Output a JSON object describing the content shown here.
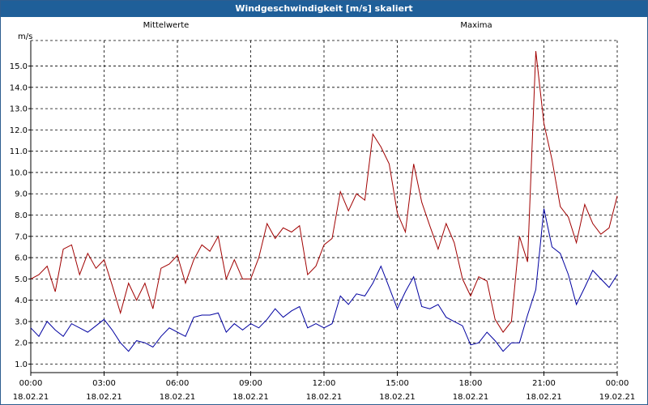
{
  "window": {
    "title": "Windgeschwindigkeit [m/s] skaliert"
  },
  "colors": {
    "mean": "#0000a0",
    "max": "#a00000",
    "titlebar": "#1f5f99"
  },
  "chart_data": {
    "type": "line",
    "title": "Windgeschwindigkeit [m/s] skaliert",
    "ylabel": "m/s",
    "xlabel": "",
    "ylim": [
      0.6,
      16.2
    ],
    "xlim": [
      0,
      24
    ],
    "grid": true,
    "yticks": [
      "1.0",
      "2.0",
      "3.0",
      "4.0",
      "5.0",
      "6.0",
      "7.0",
      "8.0",
      "9.0",
      "10.0",
      "11.0",
      "12.0",
      "13.0",
      "14.0",
      "15.0"
    ],
    "xticks": [
      {
        "time": "00:00",
        "date": "18.02.21"
      },
      {
        "time": "03:00",
        "date": "18.02.21"
      },
      {
        "time": "06:00",
        "date": "18.02.21"
      },
      {
        "time": "09:00",
        "date": "18.02.21"
      },
      {
        "time": "12:00",
        "date": "18.02.21"
      },
      {
        "time": "15:00",
        "date": "18.02.21"
      },
      {
        "time": "18:00",
        "date": "18.02.21"
      },
      {
        "time": "21:00",
        "date": "18.02.21"
      },
      {
        "time": "00:00",
        "date": "19.02.21"
      }
    ],
    "series": [
      {
        "name": "Mittelwerte",
        "x": [
          0,
          0.33,
          0.67,
          1,
          1.33,
          1.67,
          2,
          2.33,
          2.67,
          3,
          3.33,
          3.67,
          4,
          4.33,
          4.67,
          5,
          5.33,
          5.67,
          6,
          6.33,
          6.67,
          7,
          7.33,
          7.67,
          8,
          8.33,
          8.67,
          9,
          9.33,
          9.67,
          10,
          10.33,
          10.67,
          11,
          11.33,
          11.67,
          12,
          12.33,
          12.67,
          13,
          13.33,
          13.67,
          14,
          14.33,
          14.67,
          15,
          15.33,
          15.67,
          16,
          16.33,
          16.67,
          17,
          17.33,
          17.67,
          18,
          18.33,
          18.67,
          19,
          19.33,
          19.67,
          20,
          20.33,
          20.67,
          21,
          21.33,
          21.67,
          22,
          22.33,
          22.67,
          23,
          23.33,
          23.67,
          24
        ],
        "values": [
          2.7,
          2.3,
          3.0,
          2.6,
          2.3,
          2.9,
          2.7,
          2.5,
          2.8,
          3.1,
          2.6,
          2.0,
          1.6,
          2.1,
          2.0,
          1.8,
          2.3,
          2.7,
          2.5,
          2.3,
          3.2,
          3.3,
          3.3,
          3.4,
          2.5,
          2.9,
          2.6,
          2.9,
          2.7,
          3.1,
          3.6,
          3.2,
          3.5,
          3.7,
          2.7,
          2.9,
          2.7,
          2.9,
          4.2,
          3.8,
          4.3,
          4.2,
          4.8,
          5.6,
          4.6,
          3.6,
          4.4,
          5.1,
          3.7,
          3.6,
          3.8,
          3.2,
          3.0,
          2.8,
          1.9,
          2.0,
          2.5,
          2.1,
          1.6,
          2.0,
          2.0,
          3.3,
          4.5,
          8.3,
          6.5,
          6.2,
          5.2,
          3.8,
          4.6,
          5.4,
          5.0,
          4.6,
          5.2
        ]
      },
      {
        "name": "Maxima",
        "x": [
          0,
          0.33,
          0.67,
          1,
          1.33,
          1.67,
          2,
          2.33,
          2.67,
          3,
          3.33,
          3.67,
          4,
          4.33,
          4.67,
          5,
          5.33,
          5.67,
          6,
          6.33,
          6.67,
          7,
          7.33,
          7.67,
          8,
          8.33,
          8.67,
          9,
          9.33,
          9.67,
          10,
          10.33,
          10.67,
          11,
          11.33,
          11.67,
          12,
          12.33,
          12.67,
          13,
          13.33,
          13.67,
          14,
          14.33,
          14.67,
          15,
          15.33,
          15.67,
          16,
          16.33,
          16.67,
          17,
          17.33,
          17.67,
          18,
          18.33,
          18.67,
          19,
          19.33,
          19.67,
          20,
          20.33,
          20.67,
          21,
          21.33,
          21.67,
          22,
          22.33,
          22.67,
          23,
          23.33,
          23.67,
          24
        ],
        "values": [
          5.0,
          5.2,
          5.6,
          4.4,
          6.4,
          6.6,
          5.2,
          6.2,
          5.5,
          5.9,
          4.7,
          3.4,
          4.8,
          4.0,
          4.8,
          3.6,
          5.5,
          5.7,
          6.1,
          4.8,
          5.9,
          6.6,
          6.3,
          7.0,
          5.0,
          5.9,
          5.0,
          5.0,
          6.0,
          7.6,
          6.9,
          7.4,
          7.2,
          7.5,
          5.2,
          5.6,
          6.6,
          6.9,
          9.1,
          8.2,
          9.0,
          8.7,
          11.8,
          11.2,
          10.4,
          8.1,
          7.2,
          10.4,
          8.6,
          7.5,
          6.4,
          7.6,
          6.7,
          5.0,
          4.2,
          5.1,
          4.9,
          3.1,
          2.5,
          3.0,
          7.0,
          5.8,
          15.7,
          12.3,
          10.6,
          8.4,
          7.9,
          6.7,
          8.5,
          7.6,
          7.1,
          7.4,
          8.9
        ]
      }
    ]
  }
}
